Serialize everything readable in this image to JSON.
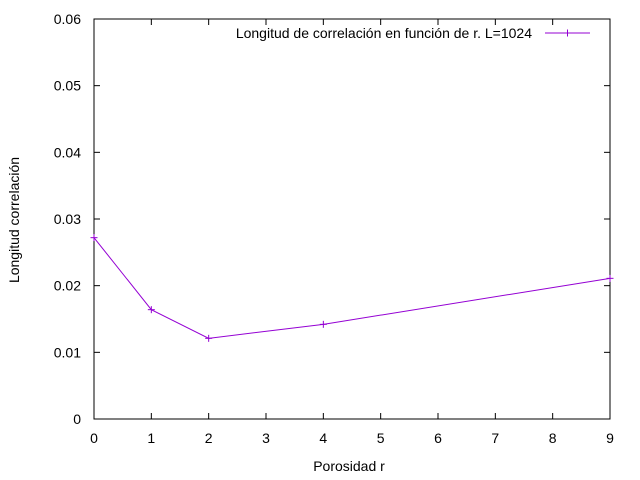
{
  "chart_data": {
    "type": "line",
    "title": "",
    "xlabel": "Porosidad r",
    "ylabel": "Longitud correlación",
    "xlim": [
      0,
      9
    ],
    "ylim": [
      0,
      0.06
    ],
    "x_ticks": [
      0,
      1,
      2,
      3,
      4,
      5,
      6,
      7,
      8,
      9
    ],
    "y_ticks": [
      "0",
      "0.01",
      "0.02",
      "0.03",
      "0.04",
      "0.05",
      "0.06"
    ],
    "legend_position": "top-right",
    "grid": false,
    "series": [
      {
        "name": "Longitud de correlación en función de r. L=1024",
        "color": "#9400d3",
        "marker": "plus",
        "points": [
          {
            "x": 0,
            "y": 0.0272
          },
          {
            "x": 1,
            "y": 0.0164
          },
          {
            "x": 2,
            "y": 0.0121
          },
          {
            "x": 4,
            "y": 0.0142
          },
          {
            "x": 9,
            "y": 0.0211
          }
        ]
      }
    ]
  }
}
